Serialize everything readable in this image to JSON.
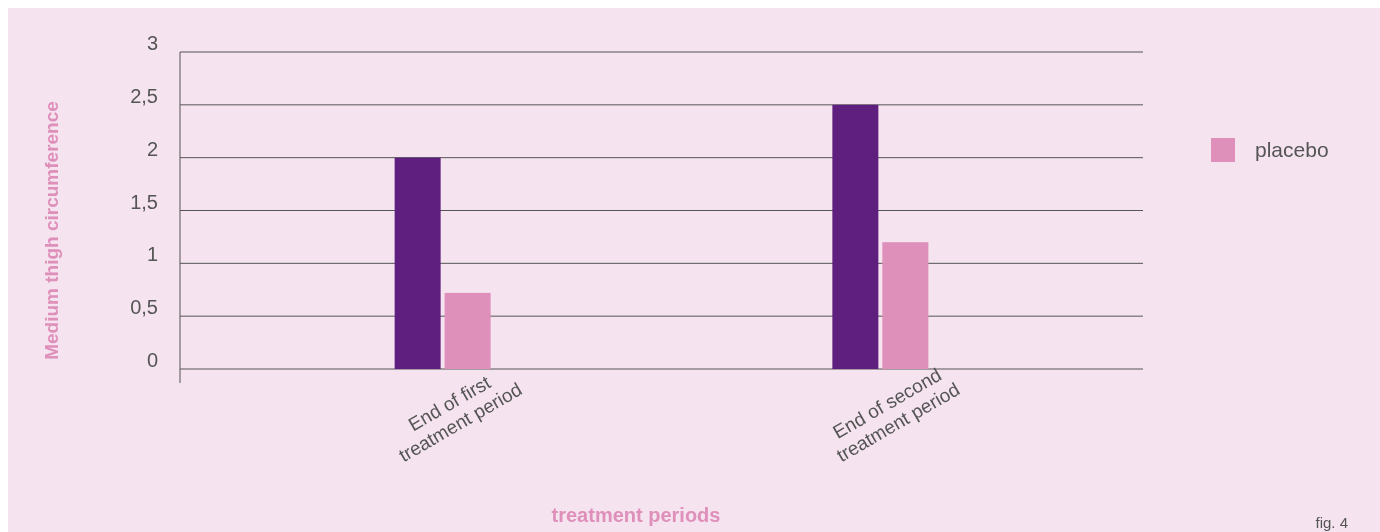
{
  "chart_data": {
    "type": "bar",
    "categories": [
      "End of first\ntreatment period",
      "End of second\ntreatment period"
    ],
    "series": [
      {
        "color": "#5e1f7e",
        "values": [
          2,
          2.5
        ]
      },
      {
        "name": "placebo",
        "color": "#de8fba",
        "values": [
          0.72,
          1.2
        ]
      }
    ],
    "xlabel": "treatment periods",
    "ylabel": "Medium thigh circumference",
    "ylim": [
      0,
      3
    ],
    "yticks": [
      0,
      {
        "value": 0.5,
        "label": "0,5"
      },
      1,
      {
        "value": 1.5,
        "label": "1,5"
      },
      2,
      {
        "value": 2.5,
        "label": "2,5"
      },
      3
    ],
    "grid": "y",
    "legend": "top right",
    "annotations": [
      "fig. 4"
    ]
  }
}
